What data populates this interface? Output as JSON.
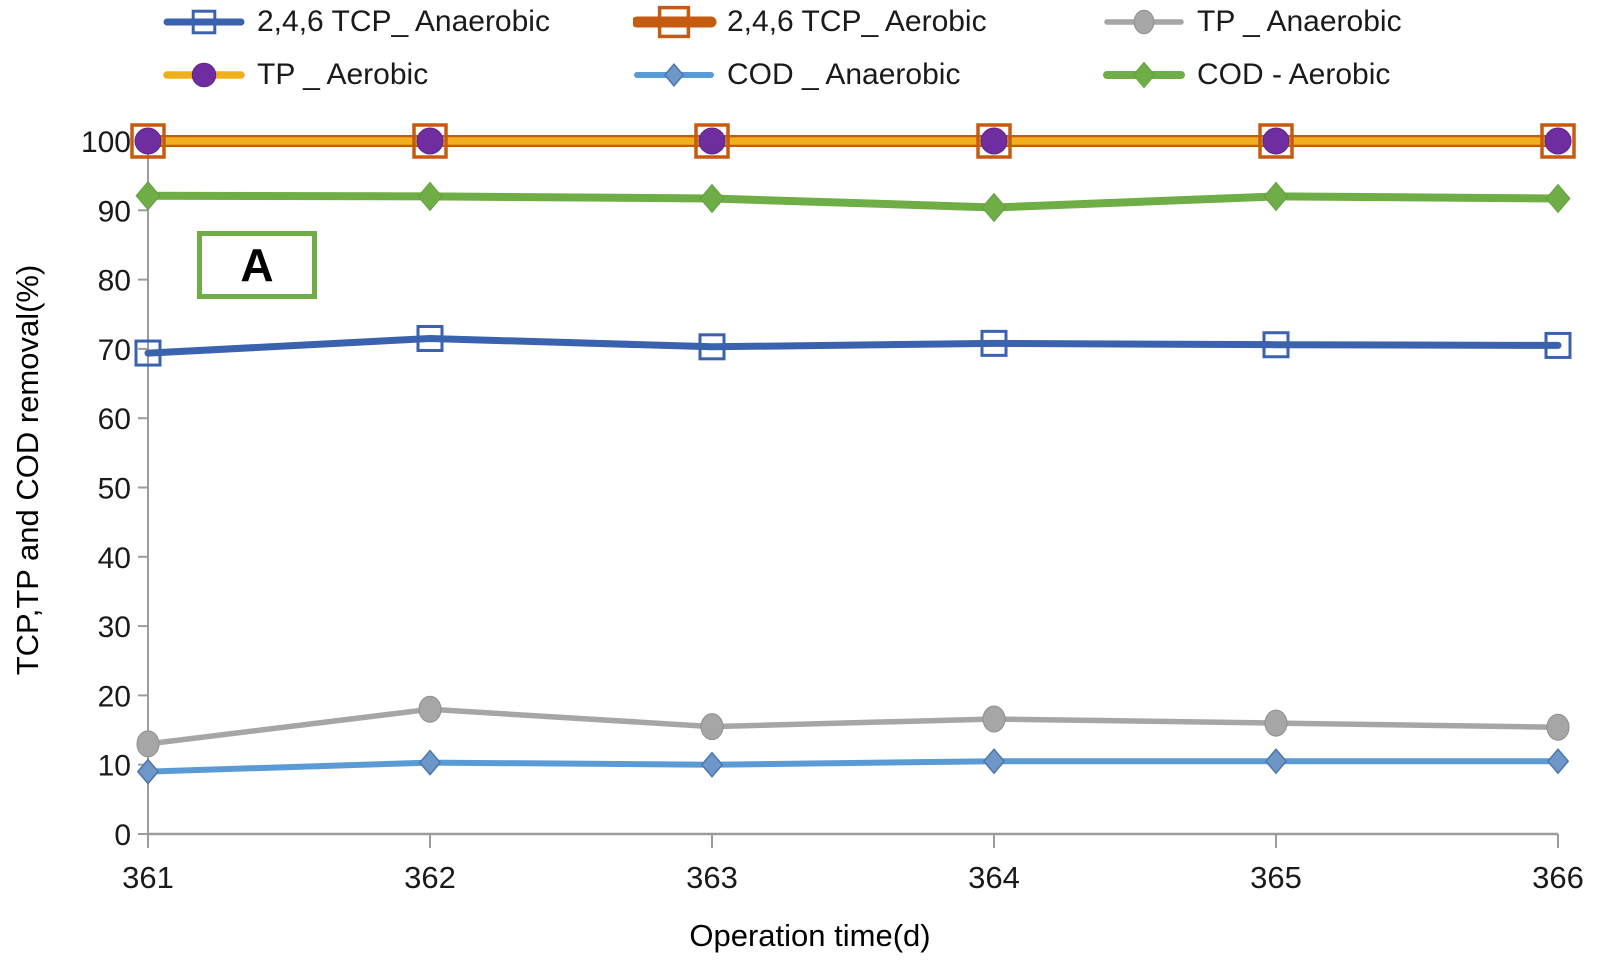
{
  "chart_data": {
    "type": "line",
    "title": "",
    "xlabel": "Operation time(d)",
    "ylabel": "TCP,TP and COD removal(%)",
    "annotation": "A",
    "annotation_box_color": "#6FAD46",
    "background": "#ffffff",
    "axis_color": "#9c9c9c",
    "text_color": "#1a1a1a",
    "grid": "off",
    "legend_position": "top",
    "x": [
      361,
      362,
      363,
      364,
      365,
      366
    ],
    "ylim": [
      0,
      100
    ],
    "ytick_step": 10,
    "series": [
      {
        "id": "tcp-anaerobic",
        "name": "2,4,6 TCP_ Anaerobic",
        "color": "#3A62AE",
        "line_width": 7,
        "marker": "square-open",
        "marker_fill": "none",
        "marker_stroke": "#3A62AE",
        "marker_stroke_width": 3,
        "marker_size": 24,
        "values": [
          69.4,
          71.5,
          70.3,
          70.8,
          70.6,
          70.5
        ]
      },
      {
        "id": "tcp-aerobic",
        "name": "2,4,6 TCP_ Aerobic",
        "color": "#C55A11",
        "line_width": 12,
        "marker": "square-open",
        "marker_fill": "none",
        "marker_stroke": "#C55A11",
        "marker_stroke_width": 3.5,
        "marker_size": 32,
        "values": [
          100,
          100,
          100,
          100,
          100,
          100
        ]
      },
      {
        "id": "tp-anaerobic",
        "name": "TP _ Anaerobic",
        "color": "#A6A6A6",
        "line_width": 5.5,
        "marker": "ellipse",
        "marker_fill": "#A6A6A6",
        "marker_stroke": "#8F8F8F",
        "marker_stroke_width": 1,
        "marker_rx": 11,
        "marker_ry": 13,
        "values": [
          13,
          18,
          15.5,
          16.6,
          16,
          15.4
        ]
      },
      {
        "id": "tp-aerobic",
        "name": "TP _ Aerobic",
        "color": "#F0B01E",
        "line_width": 7.5,
        "marker": "circle",
        "marker_fill": "#6F2DA0",
        "marker_stroke": "#5C2488",
        "marker_stroke_width": 1,
        "marker_size": 13,
        "values": [
          100,
          100,
          100,
          100,
          100,
          100
        ]
      },
      {
        "id": "cod-anaerobic",
        "name": "COD _ Anaerobic",
        "color": "#5B9BD5",
        "line_width": 6,
        "marker": "diamond",
        "marker_fill": "#6E96C6",
        "marker_stroke": "#4A78AC",
        "marker_stroke_width": 1.5,
        "marker_size": 12,
        "values": [
          9,
          10.3,
          10,
          10.5,
          10.5,
          10.5
        ]
      },
      {
        "id": "cod-aerobic",
        "name": "COD - Aerobic",
        "color": "#6FAD46",
        "line_width": 8,
        "marker": "diamond",
        "marker_fill": "#6FAD46",
        "marker_stroke": "#659E3F",
        "marker_stroke_width": 1,
        "marker_size": 14,
        "values": [
          92.1,
          92,
          91.7,
          90.4,
          92,
          91.7
        ]
      }
    ]
  }
}
